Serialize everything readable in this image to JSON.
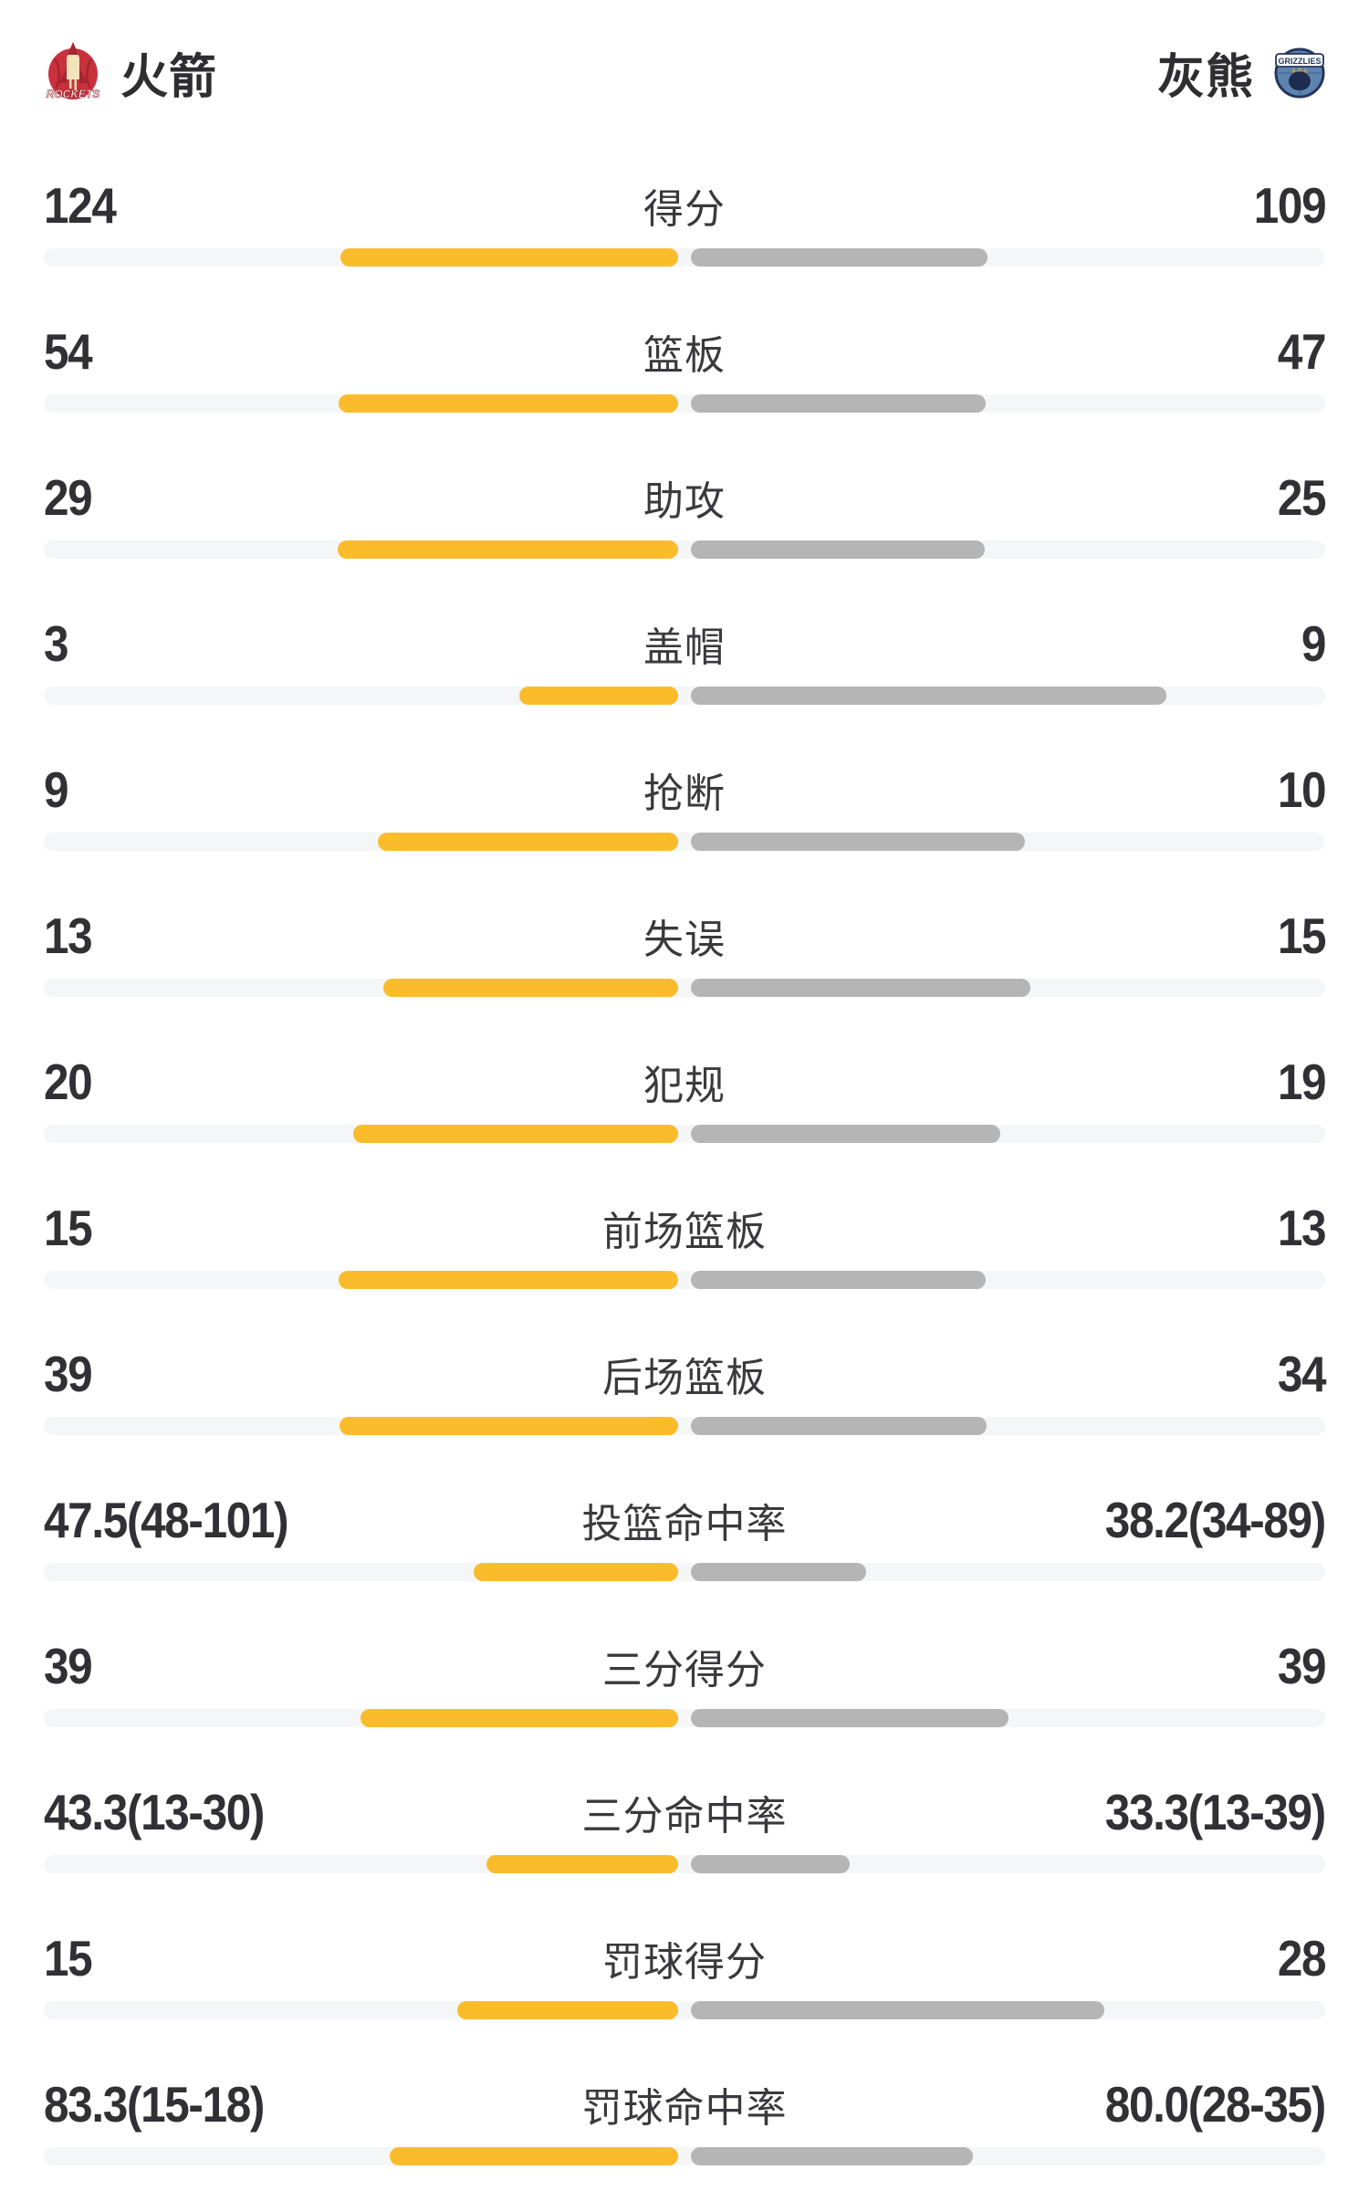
{
  "header": {
    "home_team": {
      "name": "火箭",
      "logo_label": "ROCKETS"
    },
    "away_team": {
      "name": "灰熊",
      "logo_label": "GRIZZLIES"
    }
  },
  "colors": {
    "home_bar": "#FBBC2C",
    "away_bar": "#B5B5B5",
    "bar_track": "#F5F6F8",
    "text_dark": "#313135",
    "home_logo_red": "#C9313D",
    "home_logo_cream": "#F2E3B8",
    "away_logo_blue": "#5E83AF",
    "away_logo_navy": "#25355C"
  },
  "chart_data": {
    "type": "bar",
    "orientation": "horizontal-paired",
    "legend": [
      "火箭",
      "灰熊"
    ],
    "legend_position": "top",
    "bar_rule": "count rows: width = value/(home+away); percent rows: width = value/(value+100); scaled to half track width",
    "rows": [
      {
        "label": "得分",
        "kind": "count",
        "home": 124,
        "away": 109,
        "home_display": "124",
        "away_display": "109"
      },
      {
        "label": "篮板",
        "kind": "count",
        "home": 54,
        "away": 47,
        "home_display": "54",
        "away_display": "47"
      },
      {
        "label": "助攻",
        "kind": "count",
        "home": 29,
        "away": 25,
        "home_display": "29",
        "away_display": "25"
      },
      {
        "label": "盖帽",
        "kind": "count",
        "home": 3,
        "away": 9,
        "home_display": "3",
        "away_display": "9"
      },
      {
        "label": "抢断",
        "kind": "count",
        "home": 9,
        "away": 10,
        "home_display": "9",
        "away_display": "10"
      },
      {
        "label": "失误",
        "kind": "count",
        "home": 13,
        "away": 15,
        "home_display": "13",
        "away_display": "15"
      },
      {
        "label": "犯规",
        "kind": "count",
        "home": 20,
        "away": 19,
        "home_display": "20",
        "away_display": "19"
      },
      {
        "label": "前场篮板",
        "kind": "count",
        "home": 15,
        "away": 13,
        "home_display": "15",
        "away_display": "13"
      },
      {
        "label": "后场篮板",
        "kind": "count",
        "home": 39,
        "away": 34,
        "home_display": "39",
        "away_display": "34"
      },
      {
        "label": "投篮命中率",
        "kind": "percent",
        "home": 47.5,
        "away": 38.2,
        "home_display": "47.5(48-101)",
        "away_display": "38.2(34-89)"
      },
      {
        "label": "三分得分",
        "kind": "count",
        "home": 39,
        "away": 39,
        "home_display": "39",
        "away_display": "39"
      },
      {
        "label": "三分命中率",
        "kind": "percent",
        "home": 43.3,
        "away": 33.3,
        "home_display": "43.3(13-30)",
        "away_display": "33.3(13-39)"
      },
      {
        "label": "罚球得分",
        "kind": "count",
        "home": 15,
        "away": 28,
        "home_display": "15",
        "away_display": "28"
      },
      {
        "label": "罚球命中率",
        "kind": "percent",
        "home": 83.3,
        "away": 80.0,
        "home_display": "83.3(15-18)",
        "away_display": "80.0(28-35)"
      }
    ]
  }
}
